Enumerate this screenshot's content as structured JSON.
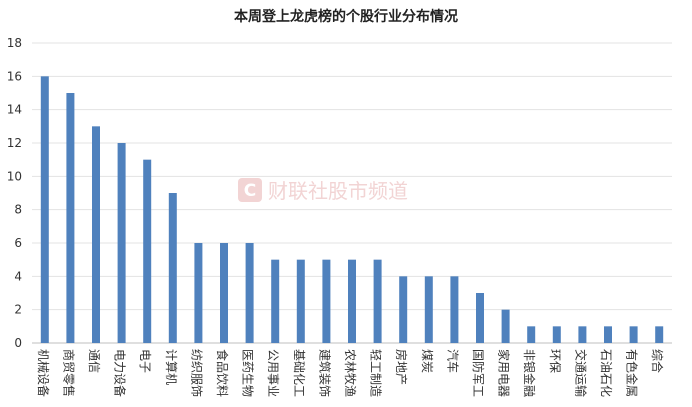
{
  "chart_data": {
    "type": "bar",
    "title": "本周登上龙虎榜的个股行业分布情况",
    "categories": [
      "机械设备",
      "商贸零售",
      "通信",
      "电力设备",
      "电子",
      "计算机",
      "纺织服饰",
      "食品饮料",
      "医药生物",
      "公用事业",
      "基础化工",
      "建筑装饰",
      "农林牧渔",
      "轻工制造",
      "房地产",
      "煤炭",
      "汽车",
      "国防军工",
      "家用电器",
      "非银金融",
      "环保",
      "交通运输",
      "石油石化",
      "有色金属",
      "综合"
    ],
    "values": [
      16,
      15,
      13,
      12,
      11,
      9,
      6,
      6,
      6,
      5,
      5,
      5,
      5,
      5,
      4,
      4,
      4,
      3,
      2,
      1,
      1,
      1,
      1,
      1,
      1
    ],
    "ylim": [
      0,
      18
    ],
    "yticks": [
      0,
      2,
      4,
      6,
      8,
      10,
      12,
      14,
      16,
      18
    ],
    "grid": true,
    "bar_color": "#4f81bd",
    "watermark": "财联社股市频道"
  }
}
